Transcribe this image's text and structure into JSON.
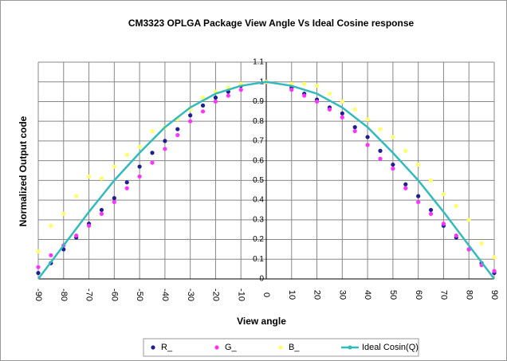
{
  "chart_data": {
    "type": "scatter",
    "title": "CM3323 OPLGA Package View Angle Vs Ideal Cosine response",
    "xlabel": "View angle",
    "ylabel": "Normalized Output code",
    "xlim": [
      -90,
      90
    ],
    "ylim": [
      0,
      1.1
    ],
    "xticks": [
      -90,
      -80,
      -70,
      -60,
      -50,
      -40,
      -30,
      -20,
      -10,
      0,
      10,
      20,
      30,
      40,
      50,
      60,
      70,
      80,
      90
    ],
    "yticks": [
      0,
      0.1,
      0.2,
      0.3,
      0.4,
      0.5,
      0.6,
      0.7,
      0.8,
      0.9,
      1,
      1.1
    ],
    "grid": true,
    "legend": "bottom",
    "series": [
      {
        "name": "R_",
        "color": "#1f1f8f",
        "kind": "points",
        "x": [
          -90,
          -85,
          -80,
          -75,
          -70,
          -65,
          -60,
          -55,
          -50,
          -45,
          -40,
          -35,
          -30,
          -25,
          -20,
          -15,
          -10,
          0,
          10,
          15,
          20,
          25,
          30,
          35,
          40,
          45,
          50,
          55,
          60,
          65,
          70,
          75,
          80,
          85,
          90
        ],
        "values": [
          0.03,
          0.08,
          0.15,
          0.21,
          0.28,
          0.35,
          0.41,
          0.49,
          0.57,
          0.64,
          0.7,
          0.76,
          0.83,
          0.88,
          0.92,
          0.95,
          0.98,
          1.0,
          0.97,
          0.94,
          0.91,
          0.87,
          0.84,
          0.77,
          0.72,
          0.65,
          0.58,
          0.48,
          0.42,
          0.35,
          0.27,
          0.21,
          0.15,
          0.08,
          0.03
        ]
      },
      {
        "name": "G_",
        "color": "#ff33ff",
        "kind": "points",
        "x": [
          -90,
          -85,
          -80,
          -75,
          -70,
          -65,
          -60,
          -55,
          -50,
          -45,
          -40,
          -35,
          -30,
          -25,
          -20,
          -15,
          -10,
          0,
          10,
          15,
          20,
          25,
          30,
          35,
          40,
          45,
          50,
          55,
          60,
          65,
          70,
          75,
          80,
          85,
          90
        ],
        "values": [
          0.06,
          0.12,
          0.17,
          0.22,
          0.27,
          0.33,
          0.39,
          0.46,
          0.52,
          0.59,
          0.66,
          0.73,
          0.8,
          0.85,
          0.9,
          0.93,
          0.96,
          1.0,
          0.96,
          0.93,
          0.9,
          0.86,
          0.82,
          0.75,
          0.68,
          0.61,
          0.56,
          0.46,
          0.39,
          0.33,
          0.28,
          0.22,
          0.15,
          0.07,
          0.04
        ]
      },
      {
        "name": "B_",
        "color": "#ffff66",
        "kind": "points",
        "x": [
          -90,
          -85,
          -80,
          -75,
          -70,
          -65,
          -60,
          -55,
          -50,
          -45,
          -40,
          -35,
          -30,
          -25,
          -20,
          -15,
          -10,
          0,
          10,
          15,
          20,
          25,
          30,
          35,
          40,
          45,
          50,
          55,
          60,
          65,
          70,
          75,
          80,
          85,
          90
        ],
        "values": [
          0.14,
          0.27,
          0.33,
          0.42,
          0.52,
          0.51,
          0.57,
          0.63,
          0.67,
          0.75,
          0.77,
          0.81,
          0.86,
          0.92,
          0.95,
          0.97,
          0.99,
          1.0,
          0.99,
          0.99,
          0.98,
          0.94,
          0.9,
          0.86,
          0.81,
          0.76,
          0.72,
          0.65,
          0.58,
          0.5,
          0.43,
          0.37,
          0.3,
          0.18,
          0.11
        ]
      },
      {
        "name": "Ideal Cosin(Q)",
        "color": "#33bbbb",
        "kind": "line",
        "x": [
          -90,
          -80,
          -70,
          -60,
          -50,
          -40,
          -30,
          -20,
          -10,
          0,
          10,
          20,
          30,
          40,
          50,
          60,
          70,
          80,
          90
        ],
        "values": [
          0,
          0.17,
          0.34,
          0.5,
          0.64,
          0.77,
          0.87,
          0.94,
          0.98,
          1,
          0.98,
          0.94,
          0.87,
          0.77,
          0.64,
          0.5,
          0.34,
          0.17,
          0
        ]
      }
    ]
  }
}
